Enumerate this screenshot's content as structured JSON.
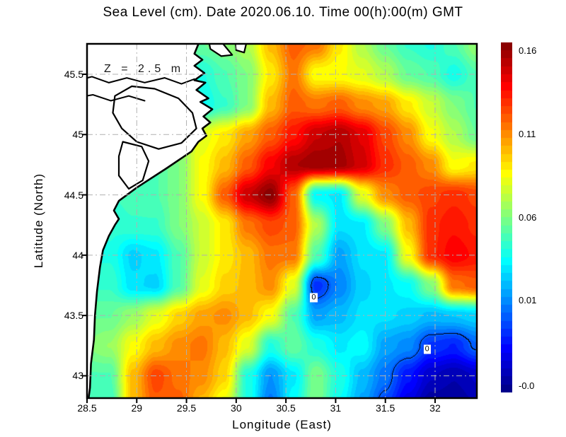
{
  "title": "Sea Level (cm). Date 2020.06.10. Time 00(h):00(m) GMT",
  "annotation": "Z = 2.5 m",
  "axes": {
    "xlabel": "Longitude (East)",
    "ylabel": "Latitude (North)",
    "x_ticks": [
      {
        "value": 28.5,
        "label": "28.5"
      },
      {
        "value": 29.0,
        "label": "29"
      },
      {
        "value": 29.5,
        "label": "29.5"
      },
      {
        "value": 30.0,
        "label": "30"
      },
      {
        "value": 30.5,
        "label": "30.5"
      },
      {
        "value": 31.0,
        "label": "31"
      },
      {
        "value": 31.5,
        "label": "31.5"
      },
      {
        "value": 32.0,
        "label": "32"
      }
    ],
    "y_ticks": [
      {
        "value": 45.5,
        "label": "45.5"
      },
      {
        "value": 45.0,
        "label": "45"
      },
      {
        "value": 44.5,
        "label": "44.5"
      },
      {
        "value": 44.0,
        "label": "44"
      },
      {
        "value": 43.5,
        "label": "43.5"
      },
      {
        "value": 43.0,
        "label": "43"
      }
    ],
    "x_gridlines": [
      29.0,
      29.5,
      30.0,
      30.5,
      31.0,
      31.5,
      32.0
    ],
    "y_gridlines": [
      43.0,
      43.5,
      44.0,
      44.5,
      45.0,
      45.5
    ],
    "lon_min": 28.5,
    "lon_max": 32.42,
    "lat_min": 42.815,
    "lat_max": 45.752,
    "grid_color": "#b0b0b0"
  },
  "colorbar": {
    "vmin": -0.045,
    "vmax": 0.165,
    "levels": 44,
    "tick_labels": [
      {
        "text": "0.16",
        "value": 0.16
      },
      {
        "text": "0.11",
        "value": 0.11
      },
      {
        "text": "0.06",
        "value": 0.06
      },
      {
        "text": "0.01",
        "value": 0.01
      },
      {
        "text": "-0.0",
        "value": -0.041
      }
    ]
  },
  "chart_data": {
    "type": "heatmap",
    "title": "Sea Level (cm). Date 2020.06.10. Time 00(h):00(m) GMT",
    "xlabel": "Longitude (East)",
    "ylabel": "Latitude (North)",
    "colormap": "jet",
    "value_range": [
      -0.045,
      0.165
    ],
    "lon": [
      28.5,
      28.73,
      28.96,
      29.19,
      29.42,
      29.65,
      29.88,
      30.11,
      30.34,
      30.58,
      30.81,
      31.04,
      31.27,
      31.5,
      31.73,
      31.96,
      32.19,
      32.42
    ],
    "lat": [
      45.75,
      45.5,
      45.25,
      45.0,
      44.75,
      44.5,
      44.25,
      44.0,
      43.75,
      43.5,
      43.25,
      43.0,
      42.75
    ],
    "values": [
      [
        0.05,
        0.05,
        0.05,
        0.05,
        0.05,
        0.055,
        0.06,
        0.07,
        0.1,
        0.12,
        0.115,
        0.09,
        0.07,
        0.055,
        0.045,
        0.04,
        0.05,
        0.065
      ],
      [
        0.05,
        0.05,
        0.05,
        0.05,
        0.04,
        0.04,
        0.05,
        0.06,
        0.09,
        0.115,
        0.085,
        0.085,
        0.08,
        0.07,
        0.055,
        0.05,
        0.038,
        0.05
      ],
      [
        0.05,
        0.05,
        0.05,
        0.05,
        0.04,
        0.035,
        0.045,
        0.06,
        0.1,
        0.12,
        0.115,
        0.12,
        0.11,
        0.105,
        0.09,
        0.075,
        0.06,
        0.05
      ],
      [
        0.05,
        0.05,
        0.05,
        0.06,
        0.07,
        0.08,
        0.09,
        0.105,
        0.12,
        0.135,
        0.15,
        0.155,
        0.145,
        0.125,
        0.11,
        0.085,
        0.07,
        0.055
      ],
      [
        0.05,
        0.05,
        0.05,
        0.05,
        0.06,
        0.085,
        0.1,
        0.12,
        0.14,
        0.155,
        0.16,
        0.158,
        0.148,
        0.13,
        0.12,
        0.11,
        0.085,
        0.09
      ],
      [
        0.045,
        0.045,
        0.048,
        0.05,
        0.06,
        0.085,
        0.12,
        0.15,
        0.163,
        0.12,
        0.033,
        0.03,
        0.08,
        0.11,
        0.12,
        0.125,
        0.13,
        0.125
      ],
      [
        0.04,
        0.042,
        0.045,
        0.045,
        0.06,
        0.075,
        0.09,
        0.115,
        0.125,
        0.12,
        0.07,
        0.028,
        0.03,
        0.06,
        0.1,
        0.13,
        0.135,
        0.13
      ],
      [
        0.04,
        0.04,
        0.025,
        0.03,
        0.05,
        0.075,
        0.09,
        0.1,
        0.115,
        0.115,
        0.05,
        0.015,
        0.028,
        0.03,
        0.085,
        0.13,
        0.14,
        0.135
      ],
      [
        0.045,
        0.045,
        0.028,
        0.025,
        0.05,
        0.08,
        0.095,
        0.1,
        0.11,
        0.08,
        -0.01,
        0.008,
        0.025,
        0.03,
        0.035,
        0.06,
        0.115,
        0.12
      ],
      [
        0.055,
        0.055,
        0.065,
        0.08,
        0.095,
        0.105,
        0.11,
        0.1,
        0.085,
        0.05,
        0.015,
        0.02,
        0.028,
        0.028,
        0.025,
        0.02,
        0.022,
        0.025
      ],
      [
        0.06,
        0.065,
        0.085,
        0.1,
        0.11,
        0.115,
        0.1,
        0.08,
        0.04,
        0.055,
        0.04,
        0.03,
        0.035,
        0.015,
        0.01,
        -0.008,
        -0.012,
        0.002
      ],
      [
        0.05,
        0.05,
        0.1,
        0.125,
        0.115,
        0.11,
        0.095,
        0.04,
        0.012,
        0.03,
        0.06,
        0.04,
        0.02,
        0.005,
        -0.015,
        -0.03,
        -0.035,
        -0.03
      ],
      [
        0.045,
        0.045,
        0.1,
        0.12,
        0.12,
        0.1,
        0.08,
        0.04,
        0.005,
        0.035,
        0.06,
        0.035,
        0.015,
        -0.005,
        -0.025,
        -0.04,
        -0.04,
        -0.035
      ]
    ],
    "zero_contour_labels": [
      {
        "text": "0",
        "lon": 30.78,
        "lat": 43.65
      },
      {
        "text": "0",
        "lon": 31.92,
        "lat": 43.22
      }
    ],
    "land_color": "#ffffff",
    "coast_color": "#000000",
    "coastline": [
      [
        [
          29.64,
          45.79
        ],
        [
          29.58,
          45.67
        ],
        [
          29.66,
          45.62
        ],
        [
          29.58,
          45.57
        ],
        [
          29.68,
          45.51
        ],
        [
          29.58,
          45.45
        ],
        [
          29.69,
          45.43
        ],
        [
          29.6,
          45.37
        ],
        [
          29.72,
          45.3
        ],
        [
          29.64,
          45.27
        ],
        [
          29.76,
          45.21
        ],
        [
          29.67,
          45.15
        ],
        [
          29.74,
          45.1
        ],
        [
          29.66,
          45.05
        ],
        [
          29.7,
          44.99
        ],
        [
          29.62,
          44.94
        ],
        [
          29.55,
          44.86
        ],
        [
          29.3,
          44.72
        ],
        [
          29.0,
          44.56
        ],
        [
          28.82,
          44.45
        ],
        [
          28.77,
          44.37
        ],
        [
          28.82,
          44.3
        ],
        [
          28.78,
          44.25
        ],
        [
          28.72,
          44.16
        ],
        [
          28.66,
          44.04
        ],
        [
          28.63,
          43.9
        ],
        [
          28.6,
          43.7
        ],
        [
          28.58,
          43.5
        ],
        [
          28.57,
          43.3
        ],
        [
          28.54,
          43.1
        ],
        [
          28.53,
          42.9
        ],
        [
          28.51,
          42.78
        ],
        [
          28.35,
          42.7
        ],
        [
          28.35,
          45.9
        ],
        [
          29.64,
          45.9
        ]
      ]
    ],
    "islands": [
      [
        [
          29.72,
          45.79
        ],
        [
          29.74,
          45.71
        ],
        [
          29.85,
          45.65
        ],
        [
          29.96,
          45.66
        ],
        [
          29.9,
          45.72
        ],
        [
          29.83,
          45.79
        ]
      ],
      [
        [
          29.99,
          45.79
        ],
        [
          30.0,
          45.7
        ],
        [
          30.08,
          45.68
        ],
        [
          30.1,
          45.75
        ],
        [
          30.05,
          45.79
        ]
      ]
    ],
    "lakes": [
      [
        [
          28.78,
          45.32
        ],
        [
          28.95,
          45.4
        ],
        [
          29.18,
          45.38
        ],
        [
          29.42,
          45.3
        ],
        [
          29.56,
          45.18
        ],
        [
          29.6,
          45.05
        ],
        [
          29.45,
          44.93
        ],
        [
          29.22,
          44.88
        ],
        [
          29.0,
          44.94
        ],
        [
          28.85,
          45.05
        ],
        [
          28.76,
          45.18
        ]
      ],
      [
        [
          28.86,
          44.94
        ],
        [
          29.05,
          44.9
        ],
        [
          29.12,
          44.78
        ],
        [
          29.06,
          44.62
        ],
        [
          28.92,
          44.55
        ],
        [
          28.82,
          44.66
        ],
        [
          28.82,
          44.82
        ]
      ]
    ],
    "rivers": [
      [
        [
          28.36,
          45.44
        ],
        [
          28.55,
          45.48
        ],
        [
          28.72,
          45.43
        ],
        [
          28.9,
          45.47
        ],
        [
          29.08,
          45.43
        ],
        [
          29.28,
          45.47
        ],
        [
          29.45,
          45.42
        ],
        [
          29.58,
          45.46
        ]
      ],
      [
        [
          28.36,
          45.3
        ],
        [
          28.56,
          45.33
        ],
        [
          28.74,
          45.28
        ],
        [
          28.92,
          45.32
        ],
        [
          29.08,
          45.28
        ]
      ]
    ]
  }
}
